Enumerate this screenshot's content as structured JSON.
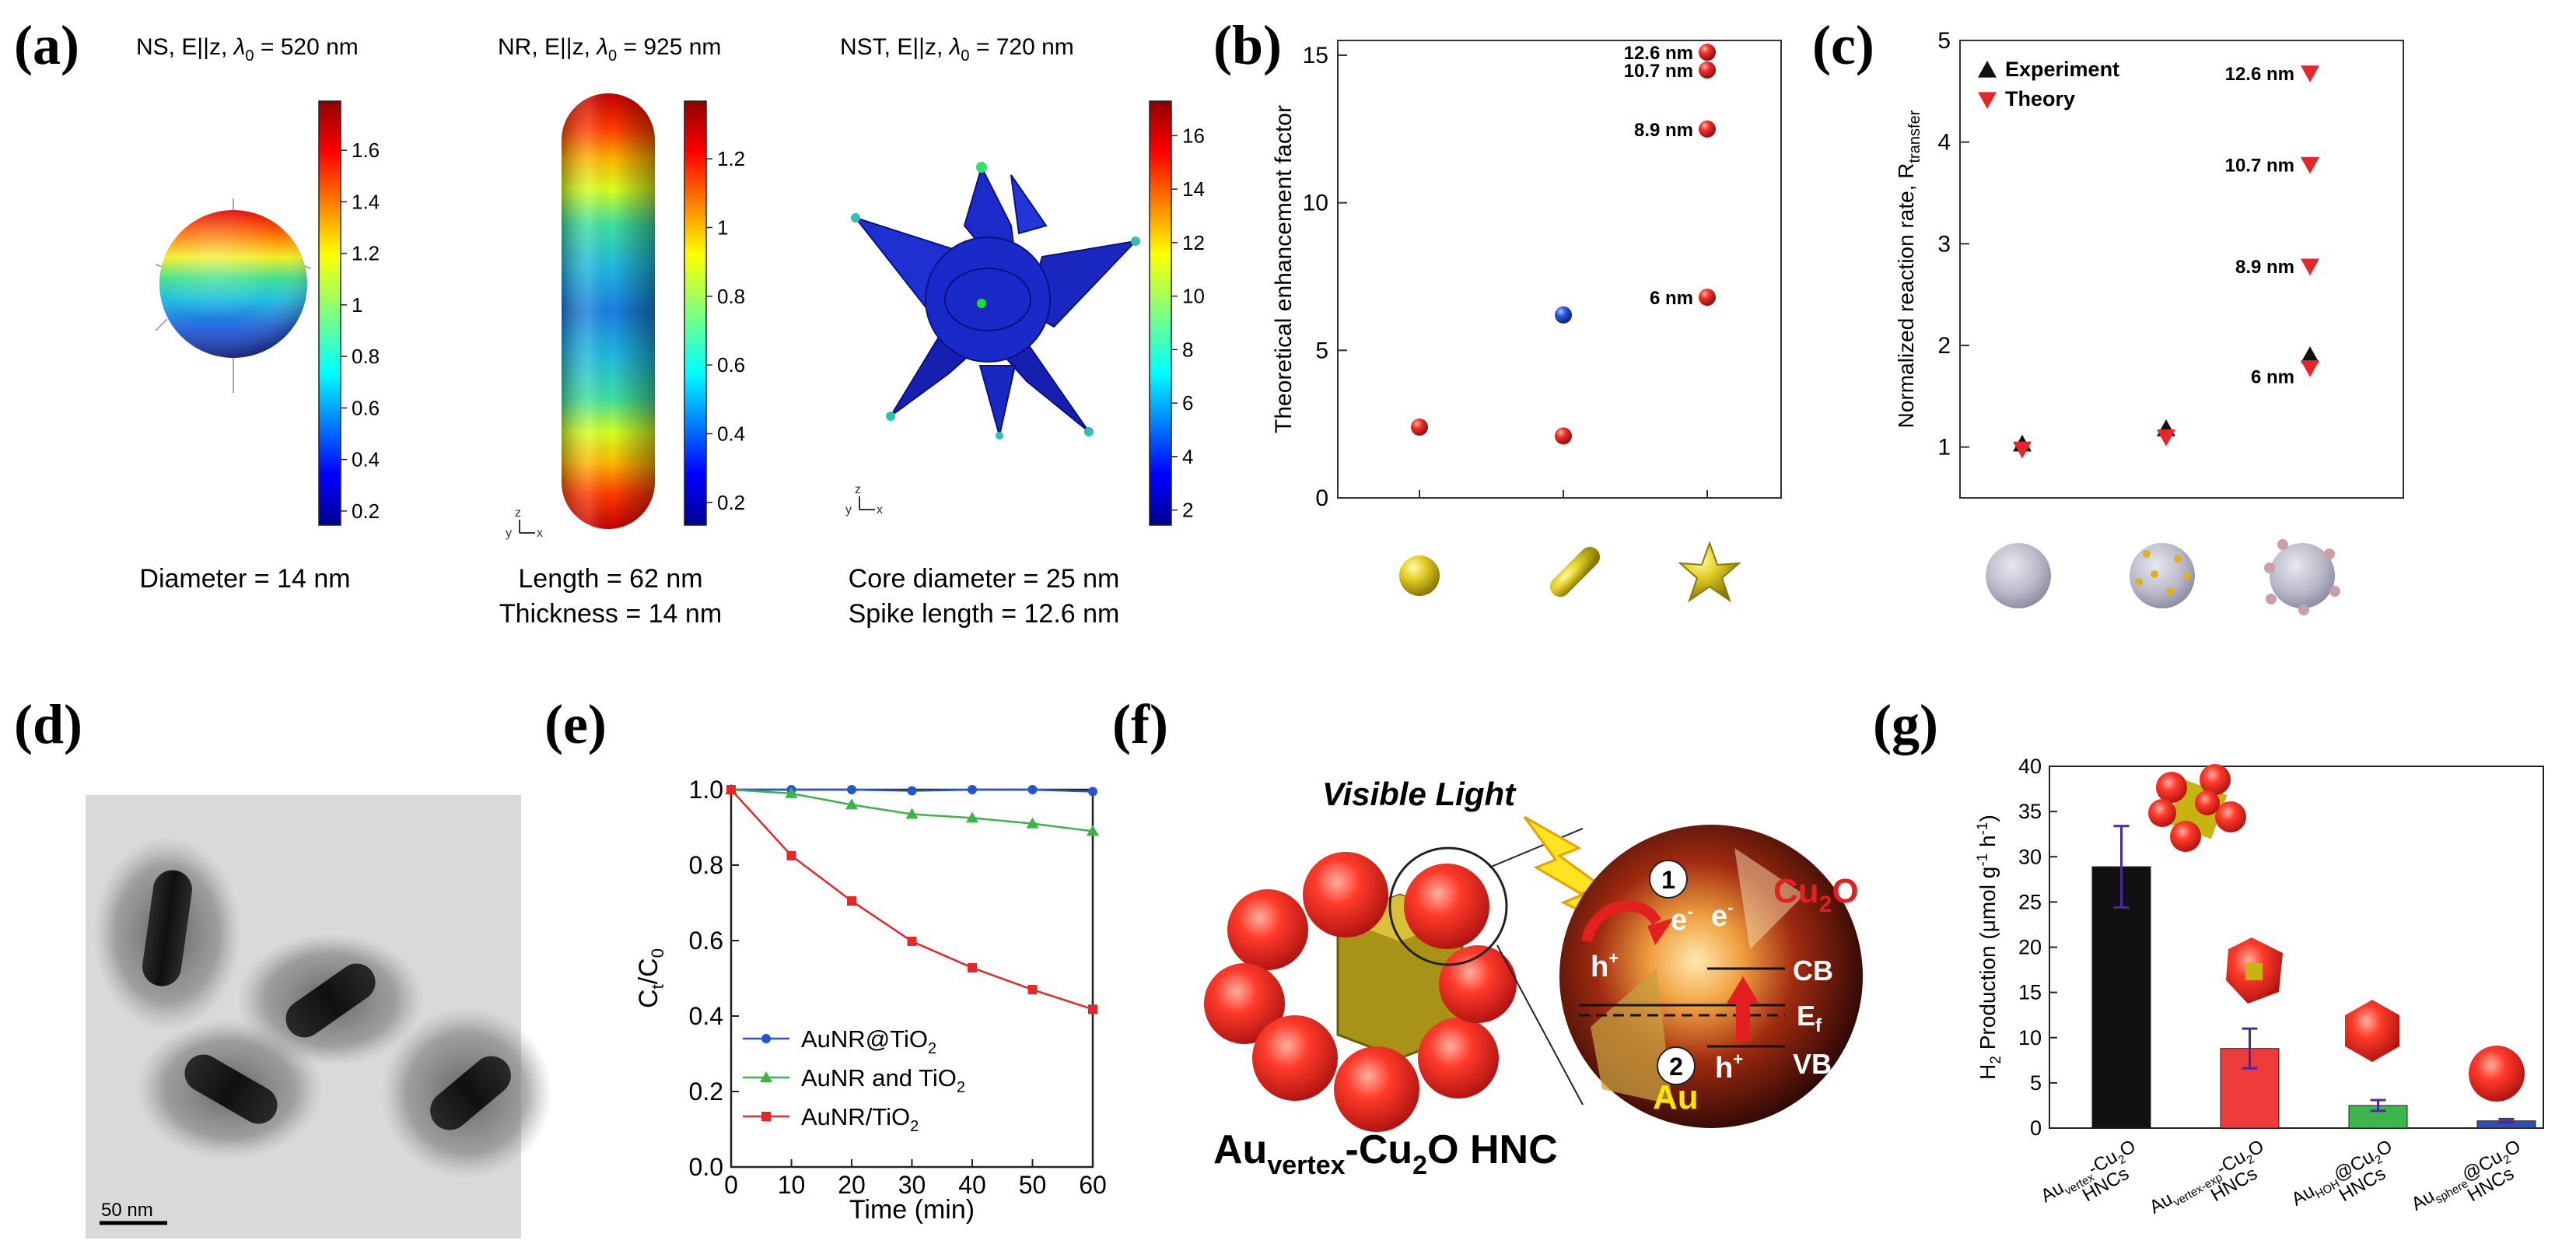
{
  "colors": {
    "red": "#e8262a",
    "blue": "#2456c9",
    "green": "#3fb34a",
    "black": "#111111",
    "gold": "#c9b313",
    "cu2o": "#e41f1f"
  },
  "panel_a": {
    "letter": "(a)",
    "ns": {
      "title_pre": "NS, E||z, ",
      "lambda": "λ",
      "lambda_sub": "0",
      "title_post": " = 520 nm",
      "caption": "Diameter = 14 nm",
      "scale_ticks": [
        "1.6",
        "1.4",
        "1.2",
        "1",
        "0.8",
        "0.6",
        "0.4",
        "0.2"
      ]
    },
    "nr": {
      "title_pre": "NR, E||z, ",
      "lambda": "λ",
      "lambda_sub": "0",
      "title_post": " = 925 nm",
      "caption1": "Length = 62 nm",
      "caption2": "Thickness = 14 nm",
      "scale_ticks": [
        "1.2",
        "1",
        "0.8",
        "0.6",
        "0.4",
        "0.2"
      ]
    },
    "nst": {
      "title_pre": "NST, E||z, ",
      "lambda": "λ",
      "lambda_sub": "0",
      "title_post": " = 720 nm",
      "caption1": "Core diameter = 25 nm",
      "caption2": "Spike length = 12.6 nm",
      "scale_ticks": [
        "16",
        "14",
        "12",
        "10",
        "8",
        "6",
        "4",
        "2"
      ]
    },
    "axis_triad": "y z x"
  },
  "panel_d": {
    "letter": "(d)",
    "scalebar": "50 nm"
  },
  "panel_f": {
    "letter": "(f)",
    "visible_light": "Visible Light",
    "hnc_label_main": "Au",
    "hnc_label_sub": "vertex",
    "hnc_label_rest": "-Cu",
    "hnc_label_sub2": "2",
    "hnc_label_end": "O HNC",
    "cu2o": "Cu",
    "cu2o_sub": "2",
    "cu2o_end": "O",
    "au": "Au",
    "step1": "1",
    "step2": "2",
    "e1": "e",
    "e2": "e",
    "hplus1": "h",
    "hplus2": "h",
    "cb": "CB",
    "ef": "E",
    "ef_sub": "f",
    "vb": "VB"
  },
  "chart_data": [
    {
      "panel": "b",
      "letter": "(b)",
      "type": "scatter",
      "ylabel": "Theoretical enhancement factor",
      "ylim": [
        0,
        15.5
      ],
      "yticks": [
        0,
        5,
        10,
        15
      ],
      "categories": [
        "nanosphere",
        "nanorod",
        "nanostar"
      ],
      "points": [
        {
          "x": 0,
          "y": 2.4,
          "color": "red"
        },
        {
          "x": 1,
          "y": 2.1,
          "color": "red"
        },
        {
          "x": 1,
          "y": 6.2,
          "color": "blue"
        },
        {
          "x": 2,
          "y": 6.8,
          "color": "red",
          "label": "6 nm"
        },
        {
          "x": 2,
          "y": 12.5,
          "color": "red",
          "label": "8.9 nm"
        },
        {
          "x": 2,
          "y": 14.5,
          "color": "red",
          "label": "10.7 nm"
        },
        {
          "x": 2,
          "y": 15.1,
          "color": "red",
          "label": "12.6 nm"
        }
      ]
    },
    {
      "panel": "c",
      "letter": "(c)",
      "type": "scatter",
      "ylabel": "Normalized reaction rate, R",
      "ylabel_sub": "transfer",
      "ylim": [
        0.5,
        5
      ],
      "yticks": [
        1,
        2,
        3,
        4,
        5
      ],
      "legend": [
        "Experiment",
        "Theory"
      ],
      "series": [
        {
          "name": "Experiment",
          "marker": "up",
          "color": "black",
          "points": [
            {
              "x": 0,
              "y": 1.03
            },
            {
              "x": 1,
              "y": 1.18
            },
            {
              "x": 2,
              "y": 1.9
            }
          ]
        },
        {
          "name": "Theory",
          "marker": "down",
          "color": "red",
          "points": [
            {
              "x": 0,
              "y": 0.98
            },
            {
              "x": 1,
              "y": 1.1
            },
            {
              "x": 2,
              "y": 1.78,
              "label": "6 nm"
            },
            {
              "x": 2,
              "y": 2.78,
              "label": "8.9 nm"
            },
            {
              "x": 2,
              "y": 3.78,
              "label": "10.7 nm"
            },
            {
              "x": 2,
              "y": 4.68,
              "label": "12.6 nm"
            }
          ]
        }
      ]
    },
    {
      "panel": "e",
      "letter": "(e)",
      "type": "line",
      "xlabel": "Time (min)",
      "ylabel_main": "C",
      "ylabel_sub1": "t",
      "ylabel_mid": "/C",
      "ylabel_sub2": "0",
      "xlim": [
        0,
        60
      ],
      "ylim": [
        0,
        1
      ],
      "xticks": [
        0,
        10,
        20,
        30,
        40,
        50,
        60
      ],
      "yticks": [
        0.0,
        0.2,
        0.4,
        0.6,
        0.8,
        1.0
      ],
      "ytick_labels": [
        "0.0",
        "0.2",
        "0.4",
        "0.6",
        "0.8",
        "1.0"
      ],
      "x": [
        0,
        10,
        20,
        30,
        40,
        50,
        60
      ],
      "series": [
        {
          "name": "AuNR@TiO",
          "sub": "2",
          "color": "blue",
          "marker": "circle",
          "values": [
            1.0,
            1.0,
            1.0,
            0.997,
            1.0,
            1.0,
            0.995
          ]
        },
        {
          "name": "AuNR and TiO",
          "sub": "2",
          "color": "green",
          "marker": "triangle",
          "values": [
            1.0,
            0.99,
            0.96,
            0.935,
            0.925,
            0.91,
            0.89
          ]
        },
        {
          "name": "AuNR/TiO",
          "sub": "2",
          "color": "red",
          "marker": "square",
          "values": [
            1.0,
            0.825,
            0.705,
            0.598,
            0.528,
            0.47,
            0.418
          ]
        }
      ]
    },
    {
      "panel": "g",
      "letter": "(g)",
      "type": "bar",
      "ylabel_main": "H",
      "ylabel_sub": "2",
      "ylabel_rest": " Production (μmol g",
      "ylabel_sup": "-1",
      "ylabel_end": " h",
      "ylabel_sup2": "-1",
      "ylabel_close": ")",
      "ylim": [
        0,
        40
      ],
      "yticks": [
        0,
        5,
        10,
        15,
        20,
        25,
        30,
        35,
        40
      ],
      "categories": [
        {
          "main": "Au",
          "sub": "vertex",
          "rest": "-Cu",
          "sub2": "2",
          "end": "O",
          "line2": "HNCs"
        },
        {
          "main": "Au",
          "sub": "vertex-exp",
          "rest": "-Cu",
          "sub2": "2",
          "end": "O",
          "line2": "HNCs"
        },
        {
          "main": "Au",
          "sub": "HOH",
          "rest": "@Cu",
          "sub2": "2",
          "end": "O",
          "line2": "HNCs"
        },
        {
          "main": "Au",
          "sub": "sphere",
          "rest": "@Cu",
          "sub2": "2",
          "end": "O",
          "line2": "HNCs"
        }
      ],
      "values": [
        28.9,
        8.8,
        2.5,
        0.8
      ],
      "errors": [
        4.5,
        2.2,
        0.6,
        0.2
      ],
      "bar_colors": [
        "#111111",
        "#ee3b3b",
        "#3db54a",
        "#2f4fb5"
      ]
    }
  ]
}
